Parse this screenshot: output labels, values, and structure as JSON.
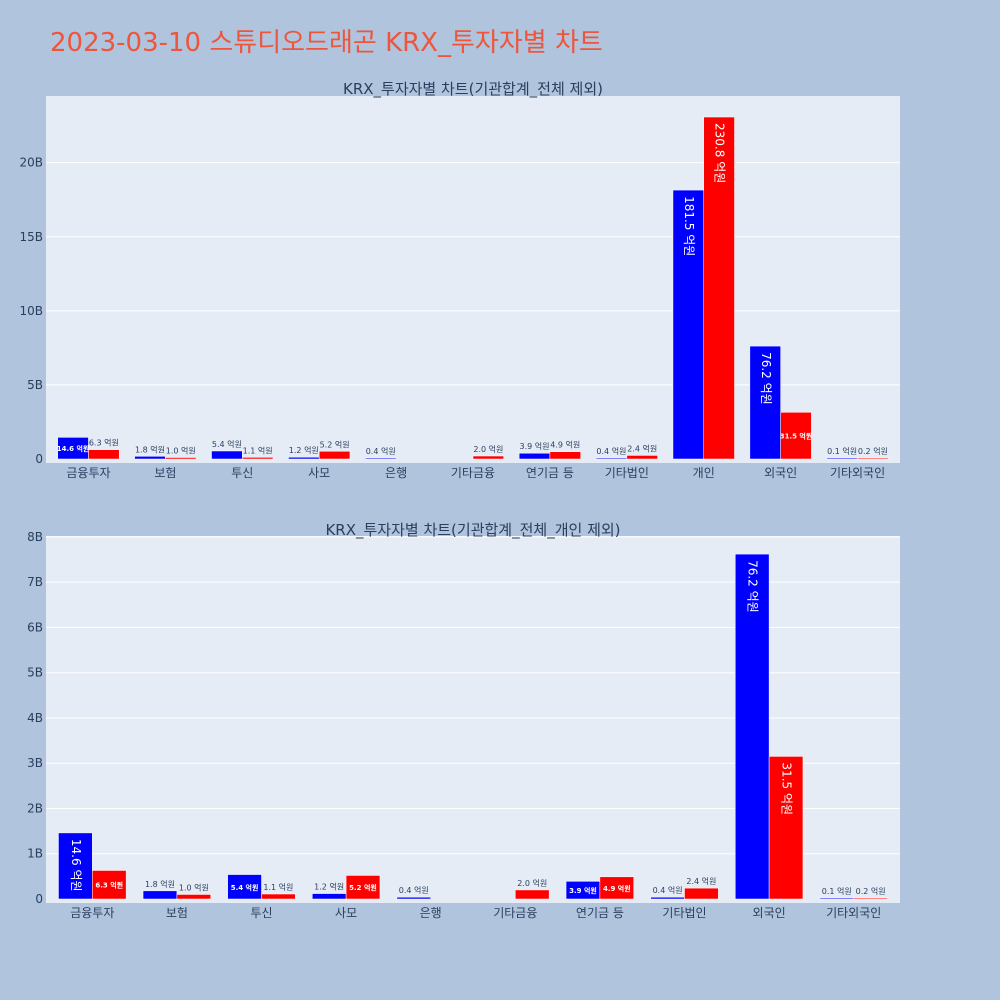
{
  "title": "2023-03-10 스튜디오드래곤 KRX_투자자별 차트",
  "colors": {
    "background": "#b0c4de",
    "plot_bg": "#e5ecf6",
    "title": "#ef553b",
    "series_1": "#0000ff",
    "series_2": "#ff0000",
    "text": "#2a3f5f"
  },
  "chart_data": [
    {
      "type": "bar",
      "title": "KRX_투자자별 차트(기관합계_전체 제외)",
      "categories": [
        "금융투자",
        "보험",
        "투신",
        "사모",
        "은행",
        "기타금융",
        "연기금 등",
        "기타법인",
        "개인",
        "외국인",
        "기타외국인"
      ],
      "series": [
        {
          "values": [
            1.46,
            0.18,
            0.54,
            0.12,
            0.04,
            0,
            0.39,
            0.04,
            18.15,
            7.62,
            0.01
          ],
          "labels": [
            "14.6 억원",
            "1.8 억원",
            "5.4 억원",
            "1.2 억원",
            "0.4 억원",
            "",
            "3.9 억원",
            "0.4 억원",
            "181.5 억원",
            "76.2 억원",
            "0.1 억원"
          ]
        },
        {
          "values": [
            0.63,
            0.1,
            0.11,
            0.52,
            0,
            0.2,
            0.49,
            0.24,
            23.08,
            3.15,
            0.02
          ],
          "labels": [
            "6.3 억원",
            "1.0 억원",
            "1.1 억원",
            "5.2 억원",
            "",
            "2.0 억원",
            "4.9 억원",
            "2.4 억원",
            "230.8 억원",
            "31.5 억원",
            "0.2 억원"
          ]
        }
      ],
      "yunit": "B",
      "ylim": [
        0,
        24.5
      ],
      "yticks": [
        0,
        5,
        10,
        15,
        20
      ],
      "ytick_labels": [
        "0",
        "5B",
        "10B",
        "15B",
        "20B"
      ],
      "grid": true
    },
    {
      "type": "bar",
      "title": "KRX_투자자별 차트(기관합계_전체_개인 제외)",
      "categories": [
        "금융투자",
        "보험",
        "투신",
        "사모",
        "은행",
        "기타금융",
        "연기금 등",
        "기타법인",
        "외국인",
        "기타외국인"
      ],
      "series": [
        {
          "values": [
            1.46,
            0.18,
            0.54,
            0.12,
            0.04,
            0,
            0.39,
            0.04,
            7.62,
            0.01
          ],
          "labels": [
            "14.6 억원",
            "1.8 억원",
            "5.4 억원",
            "1.2 억원",
            "0.4 억원",
            "",
            "3.9 억원",
            "0.4 억원",
            "76.2 억원",
            "0.1 억원"
          ]
        },
        {
          "values": [
            0.63,
            0.1,
            0.11,
            0.52,
            0,
            0.2,
            0.49,
            0.24,
            3.15,
            0.02
          ],
          "labels": [
            "6.3 억원",
            "1.0 억원",
            "1.1 억원",
            "5.2 억원",
            "",
            "2.0 억원",
            "4.9 억원",
            "2.4 억원",
            "31.5 억원",
            "0.2 억원"
          ]
        }
      ],
      "yunit": "B",
      "ylim": [
        0,
        8.02
      ],
      "yticks": [
        0,
        1,
        2,
        3,
        4,
        5,
        6,
        7,
        8
      ],
      "ytick_labels": [
        "0",
        "1B",
        "2B",
        "3B",
        "4B",
        "5B",
        "6B",
        "7B",
        "8B"
      ],
      "grid": true
    }
  ]
}
